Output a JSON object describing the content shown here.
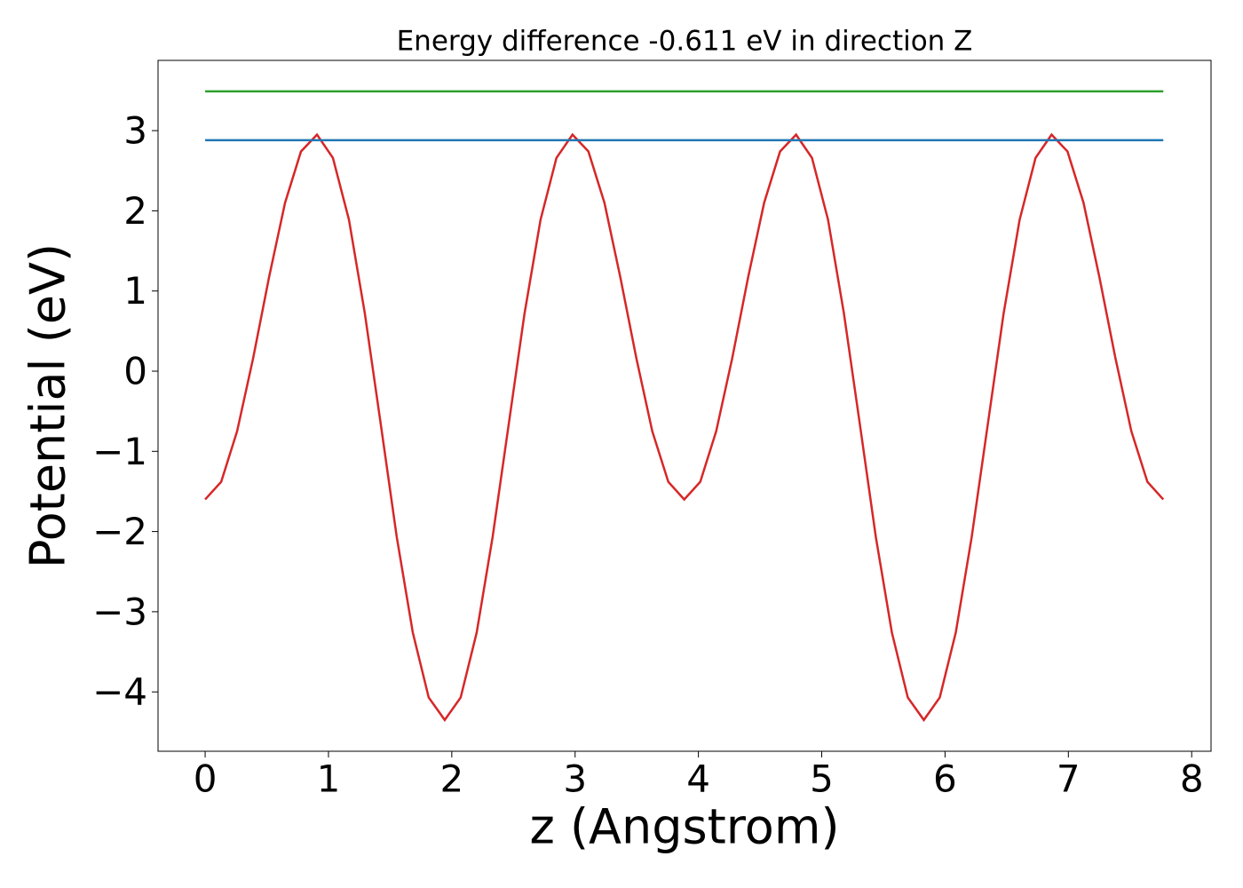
{
  "chart_data": {
    "type": "line",
    "title": "Energy difference -0.611 eV in direction Z",
    "xlabel": "z (Angstrom)",
    "ylabel": "Potential (eV)",
    "xlim": [
      -0.382,
      8.157
    ],
    "ylim": [
      -4.74,
      3.876
    ],
    "xticks": [
      0,
      1,
      2,
      3,
      4,
      5,
      6,
      7,
      8
    ],
    "yticks": [
      {
        "value": -4,
        "label": "−4"
      },
      {
        "value": -3,
        "label": "−3"
      },
      {
        "value": -2,
        "label": "−2"
      },
      {
        "value": -1,
        "label": "−1"
      },
      0,
      1,
      2,
      3
    ],
    "grid": false,
    "series": [
      {
        "color": "#d62728",
        "x": [
          0,
          0.13,
          0.259,
          0.389,
          0.518,
          0.648,
          0.777,
          0.907,
          1.036,
          1.166,
          1.295,
          1.425,
          1.554,
          1.684,
          1.813,
          1.943,
          2.072,
          2.202,
          2.331,
          2.461,
          2.59,
          2.72,
          2.849,
          2.979,
          3.108,
          3.238,
          3.367,
          3.497,
          3.626,
          3.756,
          3.885,
          4.015,
          4.144,
          4.274,
          4.403,
          4.533,
          4.662,
          4.792,
          4.921,
          5.051,
          5.18,
          5.31,
          5.439,
          5.569,
          5.698,
          5.828,
          5.957,
          6.087,
          6.216,
          6.346,
          6.475,
          6.605,
          6.734,
          6.864,
          6.993,
          7.123,
          7.252,
          7.382,
          7.511,
          7.641,
          7.77
        ],
        "values": [
          -1.6,
          -1.38,
          -0.75,
          0.16,
          1.17,
          2.1,
          2.74,
          2.95,
          2.66,
          1.89,
          0.72,
          -0.67,
          -2.07,
          -3.26,
          -4.07,
          -4.35,
          -4.07,
          -3.26,
          -2.07,
          -0.67,
          0.72,
          1.89,
          2.66,
          2.95,
          2.74,
          2.1,
          1.17,
          0.16,
          -0.75,
          -1.38,
          -1.6,
          -1.38,
          -0.75,
          0.16,
          1.17,
          2.1,
          2.74,
          2.95,
          2.66,
          1.89,
          0.72,
          -0.67,
          -2.07,
          -3.26,
          -4.07,
          -4.35,
          -4.07,
          -3.26,
          -2.07,
          -0.67,
          0.72,
          1.89,
          2.66,
          2.95,
          2.74,
          2.1,
          1.17,
          0.16,
          -0.75,
          -1.38,
          -1.6
        ]
      },
      {
        "color": "#2ca02c",
        "x": [
          0,
          7.77
        ],
        "values": [
          3.49,
          3.49
        ]
      },
      {
        "color": "#1f77b4",
        "x": [
          0,
          7.77
        ],
        "values": [
          2.88,
          2.88
        ]
      }
    ]
  }
}
